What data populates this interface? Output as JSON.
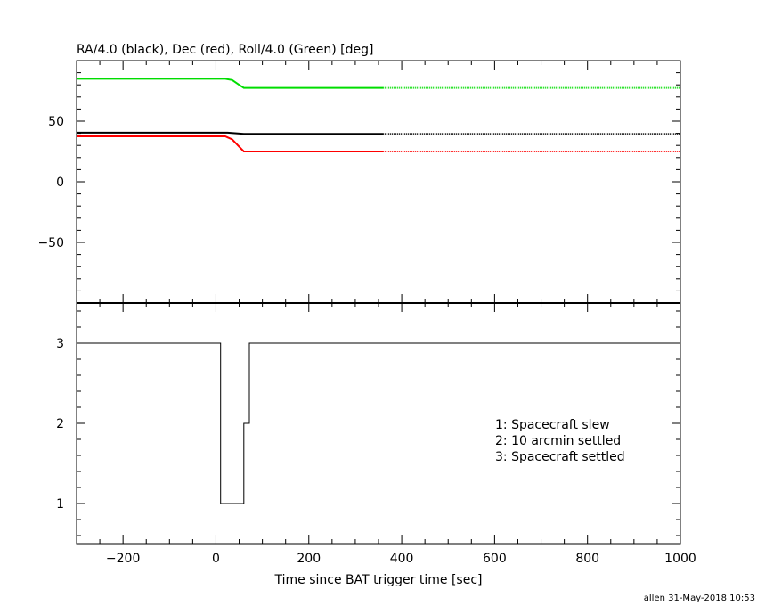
{
  "chart_data": [
    {
      "type": "line",
      "title": "RA/4.0 (black), Dec (red), Roll/4.0 (Green) [deg]",
      "xlim": [
        -300,
        1000
      ],
      "ylim": [
        -100,
        100
      ],
      "x_ticks": [
        -200,
        0,
        200,
        400,
        600,
        800,
        1000
      ],
      "y_ticks": [
        -50,
        0,
        50
      ],
      "y_tick_labels": [
        "−50",
        "0",
        "50"
      ],
      "series": [
        {
          "color": "#00dd00",
          "solid": [
            [
              -300,
              85
            ],
            [
              20,
              85
            ],
            [
              35,
              84
            ],
            [
              50,
              80
            ],
            [
              60,
              77.5
            ],
            [
              360,
              77.5
            ]
          ],
          "dotted": [
            [
              360,
              77.5
            ],
            [
              1000,
              77.5
            ]
          ]
        },
        {
          "color": "#000000",
          "solid": [
            [
              -300,
              40.5
            ],
            [
              25,
              40.5
            ],
            [
              60,
              39.5
            ],
            [
              360,
              39.5
            ]
          ],
          "dotted": [
            [
              360,
              39.5
            ],
            [
              1000,
              39.5
            ]
          ]
        },
        {
          "color": "#ff0000",
          "solid": [
            [
              -300,
              37.5
            ],
            [
              20,
              37.5
            ],
            [
              35,
              35
            ],
            [
              50,
              29
            ],
            [
              60,
              25
            ],
            [
              360,
              25
            ]
          ],
          "dotted": [
            [
              360,
              25
            ],
            [
              1000,
              25
            ]
          ]
        }
      ]
    },
    {
      "type": "line",
      "xlabel": "Time since BAT trigger time [sec]",
      "xlim": [
        -300,
        1000
      ],
      "ylim": [
        0.5,
        3.5
      ],
      "x_ticks": [
        -200,
        0,
        200,
        400,
        600,
        800,
        1000
      ],
      "x_tick_labels": [
        "−200",
        "0",
        "200",
        "400",
        "600",
        "800",
        "1000"
      ],
      "y_ticks": [
        1,
        2,
        3
      ],
      "y_tick_labels": [
        "1",
        "2",
        "3"
      ],
      "series": [
        {
          "color": "#000000",
          "points": [
            [
              -300,
              3
            ],
            [
              10,
              3
            ],
            [
              10,
              1
            ],
            [
              60,
              1
            ],
            [
              60,
              2
            ],
            [
              72,
              2
            ],
            [
              72,
              3
            ],
            [
              1000,
              3
            ]
          ]
        }
      ],
      "annotations": [
        "1: Spacecraft slew",
        "2: 10 arcmin settled",
        "3: Spacecraft settled"
      ]
    }
  ],
  "footer": "allen 31-May-2018 10:53"
}
